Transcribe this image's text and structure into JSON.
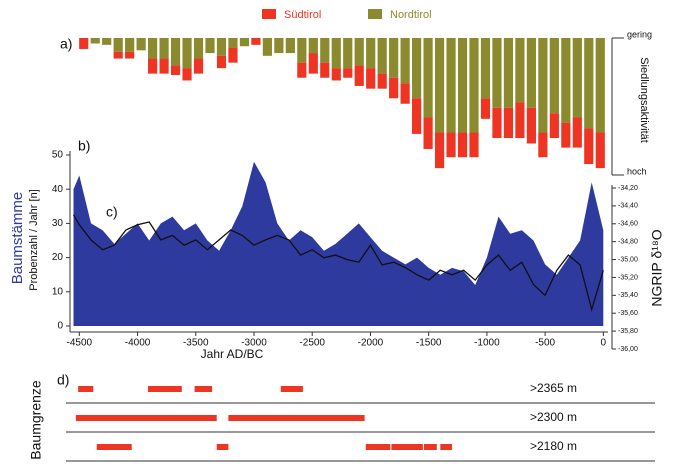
{
  "chart_data": [
    {
      "type": "bar",
      "stacked": true,
      "label": "a)",
      "ylabel": "Siedlungsaktivität",
      "ylim": [
        0,
        100
      ],
      "yticks": [
        {
          "value": 0,
          "label": "gering"
        },
        {
          "value": 100,
          "label": "hoch"
        }
      ],
      "categories": [
        null,
        null,
        null,
        null,
        null,
        null,
        null,
        null,
        null,
        null,
        null,
        null,
        null,
        null,
        null,
        null,
        null,
        null,
        null,
        null,
        null,
        null,
        null,
        null,
        null,
        null,
        null,
        null,
        null,
        null,
        null,
        null,
        null,
        null,
        null,
        null,
        null,
        null,
        null,
        null,
        null,
        null,
        null,
        null,
        null,
        null
      ],
      "series": [
        {
          "name": "Nordtirol",
          "color": "#8c8a2e",
          "values": [
            0,
            4,
            5,
            10,
            10,
            9,
            15,
            15,
            20,
            22,
            15,
            11,
            13,
            7,
            6,
            0,
            13,
            11,
            11,
            18,
            11,
            18,
            22,
            22,
            20,
            22,
            26,
            29,
            33,
            44,
            58,
            69,
            69,
            69,
            69,
            44,
            51,
            51,
            47,
            51,
            69,
            55,
            62,
            58,
            66,
            69
          ]
        },
        {
          "name": "Südtirol",
          "color": "#ee3524",
          "values": [
            8,
            0,
            0,
            5,
            5,
            0,
            11,
            11,
            7,
            9,
            11,
            0,
            9,
            11,
            0,
            5,
            0,
            0,
            0,
            11,
            15,
            11,
            9,
            7,
            15,
            15,
            11,
            15,
            15,
            26,
            23,
            26,
            18,
            18,
            18,
            15,
            22,
            22,
            26,
            26,
            18,
            18,
            18,
            22,
            26,
            26
          ]
        }
      ]
    },
    {
      "type": "area",
      "annotations": [
        "b)",
        "c)"
      ],
      "xlabel": "Jahr AD/BC",
      "ylabel": "Baumstämme",
      "ylabel2": "Probenzahl / Jahr [n]",
      "y2label": "NGRIP δ¹⁸O",
      "xlim": [
        -4580,
        40
      ],
      "xticks": [
        -4500,
        -4000,
        -3500,
        -3000,
        -2500,
        -2000,
        -1500,
        -1000,
        -500,
        0
      ],
      "ylim": [
        0,
        50
      ],
      "yticks": [
        0,
        10,
        20,
        30,
        40,
        50
      ],
      "y2lim": [
        -36.0,
        -34.2
      ],
      "y2ticks": [
        {
          "value": -34.2,
          "label": "-34,20"
        },
        {
          "value": -34.4,
          "label": "-34,40"
        },
        {
          "value": -34.6,
          "label": "-34,60"
        },
        {
          "value": -34.8,
          "label": "-34,80"
        },
        {
          "value": -35.0,
          "label": "-35,00"
        },
        {
          "value": -35.2,
          "label": "-35,20"
        },
        {
          "value": -35.4,
          "label": "-35,40"
        },
        {
          "value": -35.6,
          "label": "-35,60"
        },
        {
          "value": -35.8,
          "label": "-35,80"
        },
        {
          "value": -36.0,
          "label": "-36,00"
        }
      ],
      "x": [
        -4550,
        -4500,
        -4400,
        -4300,
        -4200,
        -4100,
        -4000,
        -3900,
        -3800,
        -3700,
        -3600,
        -3500,
        -3400,
        -3300,
        -3200,
        -3100,
        -3000,
        -2900,
        -2800,
        -2700,
        -2600,
        -2500,
        -2400,
        -2300,
        -2200,
        -2100,
        -2000,
        -1900,
        -1800,
        -1700,
        -1600,
        -1500,
        -1400,
        -1300,
        -1200,
        -1100,
        -1000,
        -900,
        -800,
        -700,
        -600,
        -500,
        -400,
        -300,
        -200,
        -100,
        0
      ],
      "series": [
        {
          "kind": "area",
          "color": "#2e3a9e",
          "values": [
            40,
            44,
            30,
            28,
            24,
            27,
            30,
            25,
            30,
            32,
            28,
            30,
            25,
            22,
            28,
            35,
            48,
            42,
            30,
            25,
            28,
            26,
            22,
            24,
            27,
            30,
            26,
            22,
            20,
            18,
            20,
            17,
            15,
            17,
            16,
            12,
            20,
            32,
            27,
            28,
            25,
            18,
            15,
            20,
            25,
            42,
            28
          ]
        },
        {
          "kind": "line",
          "axis": "y2",
          "color": "#111111",
          "values": [
            -34.5,
            -34.61,
            -34.78,
            -34.89,
            -34.84,
            -34.67,
            -34.61,
            -34.58,
            -34.78,
            -34.73,
            -34.84,
            -34.78,
            -34.89,
            -34.78,
            -34.67,
            -34.73,
            -34.84,
            -34.78,
            -34.73,
            -34.78,
            -34.95,
            -34.89,
            -34.98,
            -34.95,
            -35.0,
            -35.03,
            -34.84,
            -35.06,
            -35.03,
            -35.09,
            -35.17,
            -35.23,
            -35.12,
            -35.17,
            -35.12,
            -35.23,
            -35.06,
            -34.95,
            -35.12,
            -35.03,
            -35.28,
            -35.4,
            -35.12,
            -34.95,
            -35.06,
            -35.56,
            -35.12
          ]
        }
      ]
    },
    {
      "type": "range",
      "label": "d)",
      "ylabel": "Baumgrenze",
      "color": "#ee3524",
      "xlim": [
        -4580,
        40
      ],
      "rows": [
        {
          "name": ">2365 m",
          "segments": [
            [
              -4510,
              -4380
            ],
            [
              -3910,
              -3620
            ],
            [
              -3510,
              -3360
            ],
            [
              -2770,
              -2580
            ]
          ]
        },
        {
          "name": ">2300 m",
          "segments": [
            [
              -4530,
              -3320
            ],
            [
              -3220,
              -2050
            ]
          ]
        },
        {
          "name": ">2180 m",
          "segments": [
            [
              -4350,
              -4050
            ],
            [
              -3320,
              -3220
            ],
            [
              -2040,
              -1830
            ],
            [
              -1820,
              -1550
            ],
            [
              -1540,
              -1430
            ],
            [
              -1400,
              -1300
            ]
          ]
        }
      ]
    }
  ]
}
